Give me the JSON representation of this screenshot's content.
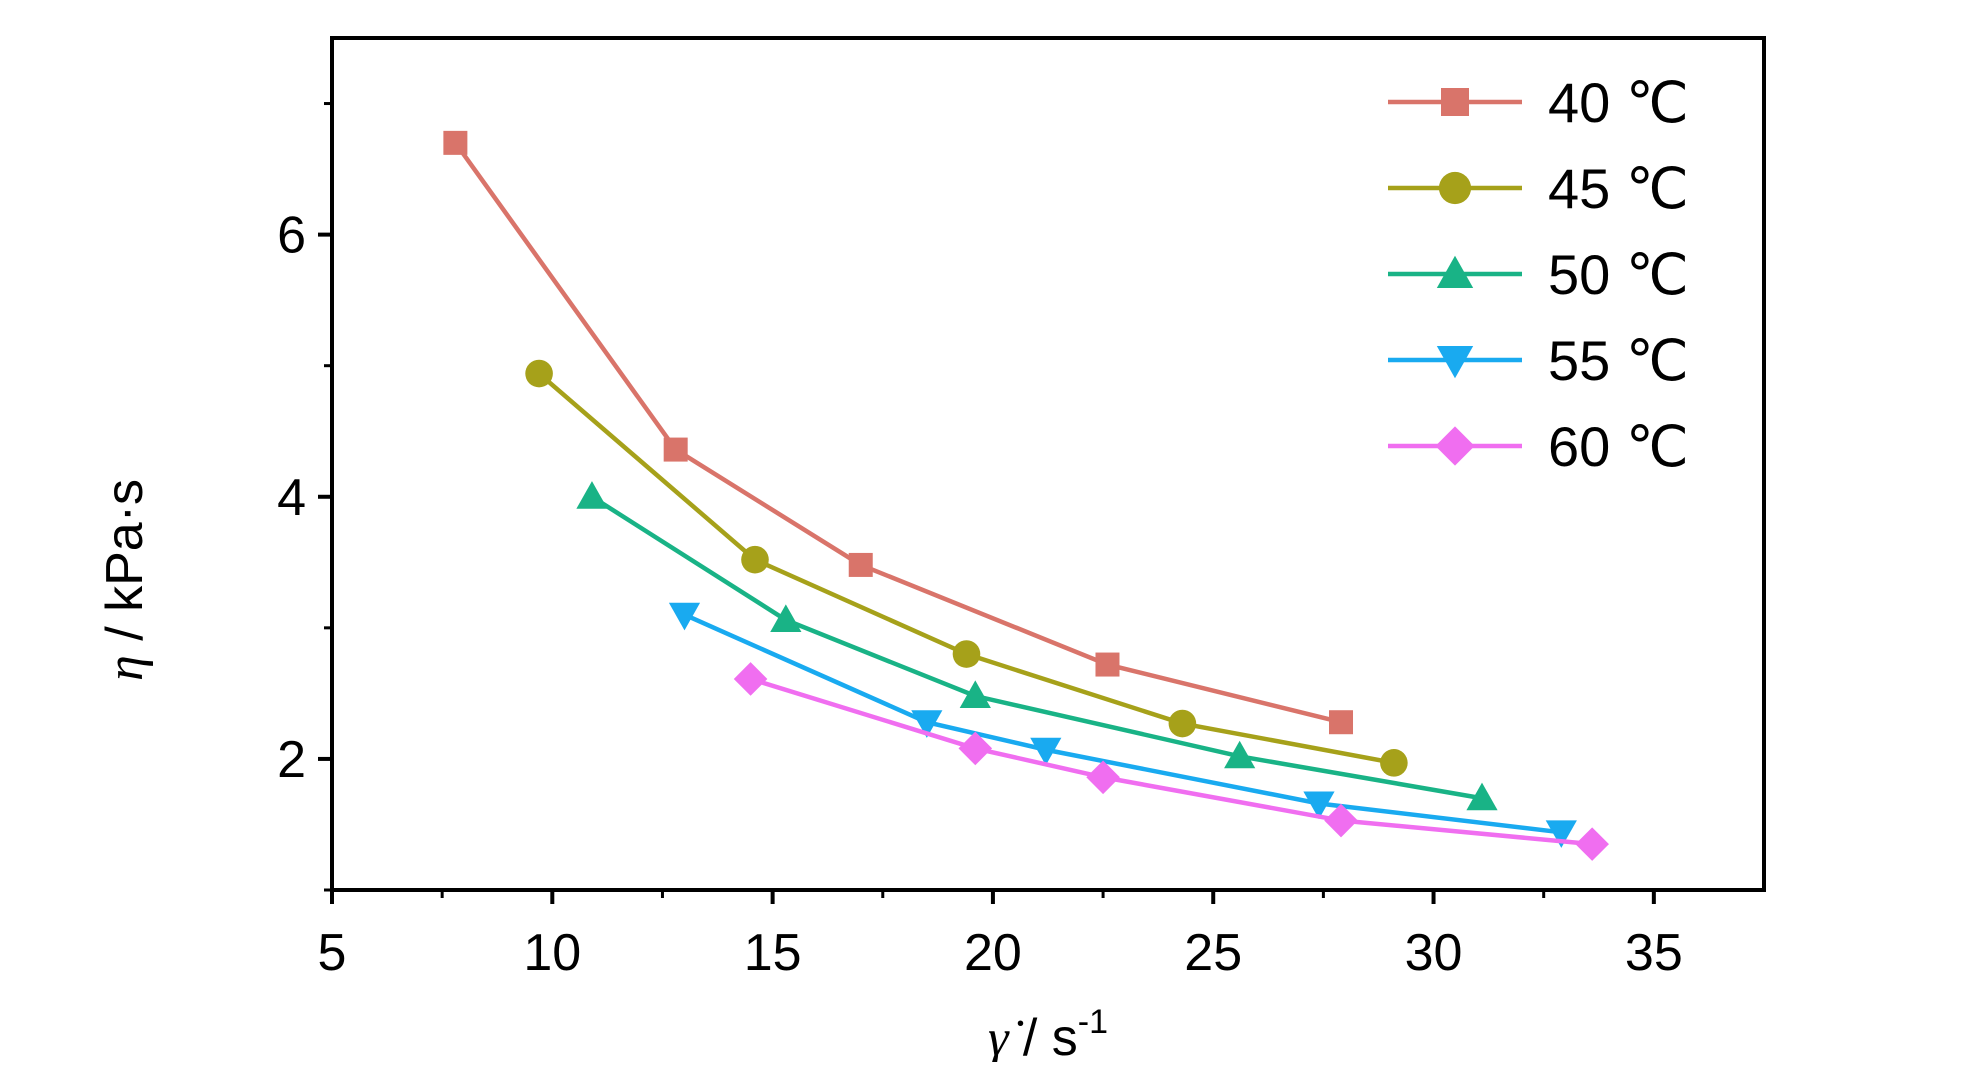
{
  "chart_data": {
    "type": "line",
    "xlabel": {
      "symbol": "γ̇",
      "rest": " / s",
      "sup": "-1"
    },
    "ylabel": {
      "symbol": "η",
      "rest": " / kPa·s"
    },
    "xlim": [
      5,
      37.5
    ],
    "ylim": [
      1,
      7.5
    ],
    "xticks": [
      5,
      10,
      15,
      20,
      25,
      30,
      35
    ],
    "yticks": [
      2,
      4,
      6
    ],
    "grid": false,
    "legend_position": "top-right",
    "series": [
      {
        "name": "40 ℃",
        "color": "#d9746a",
        "marker": "square",
        "x": [
          7.8,
          12.8,
          17.0,
          22.6,
          27.9
        ],
        "y": [
          6.7,
          4.36,
          3.48,
          2.72,
          2.28
        ]
      },
      {
        "name": "45 ℃",
        "color": "#a6a11a",
        "marker": "circle",
        "x": [
          9.7,
          14.6,
          19.4,
          24.3,
          29.1
        ],
        "y": [
          4.94,
          3.52,
          2.8,
          2.27,
          1.97
        ]
      },
      {
        "name": "50 ℃",
        "color": "#19b386",
        "marker": "triangle-up",
        "x": [
          10.9,
          15.3,
          19.6,
          25.6,
          31.1
        ],
        "y": [
          4.0,
          3.06,
          2.48,
          2.02,
          1.7
        ]
      },
      {
        "name": "55 ℃",
        "color": "#19aaf0",
        "marker": "triangle-down",
        "x": [
          13.0,
          18.5,
          21.2,
          27.4,
          32.9
        ],
        "y": [
          3.1,
          2.28,
          2.07,
          1.66,
          1.44
        ]
      },
      {
        "name": "60 ℃",
        "color": "#f06ef0",
        "marker": "diamond",
        "x": [
          14.5,
          19.6,
          22.5,
          27.9,
          33.6
        ],
        "y": [
          2.61,
          2.08,
          1.86,
          1.53,
          1.35
        ]
      }
    ]
  }
}
